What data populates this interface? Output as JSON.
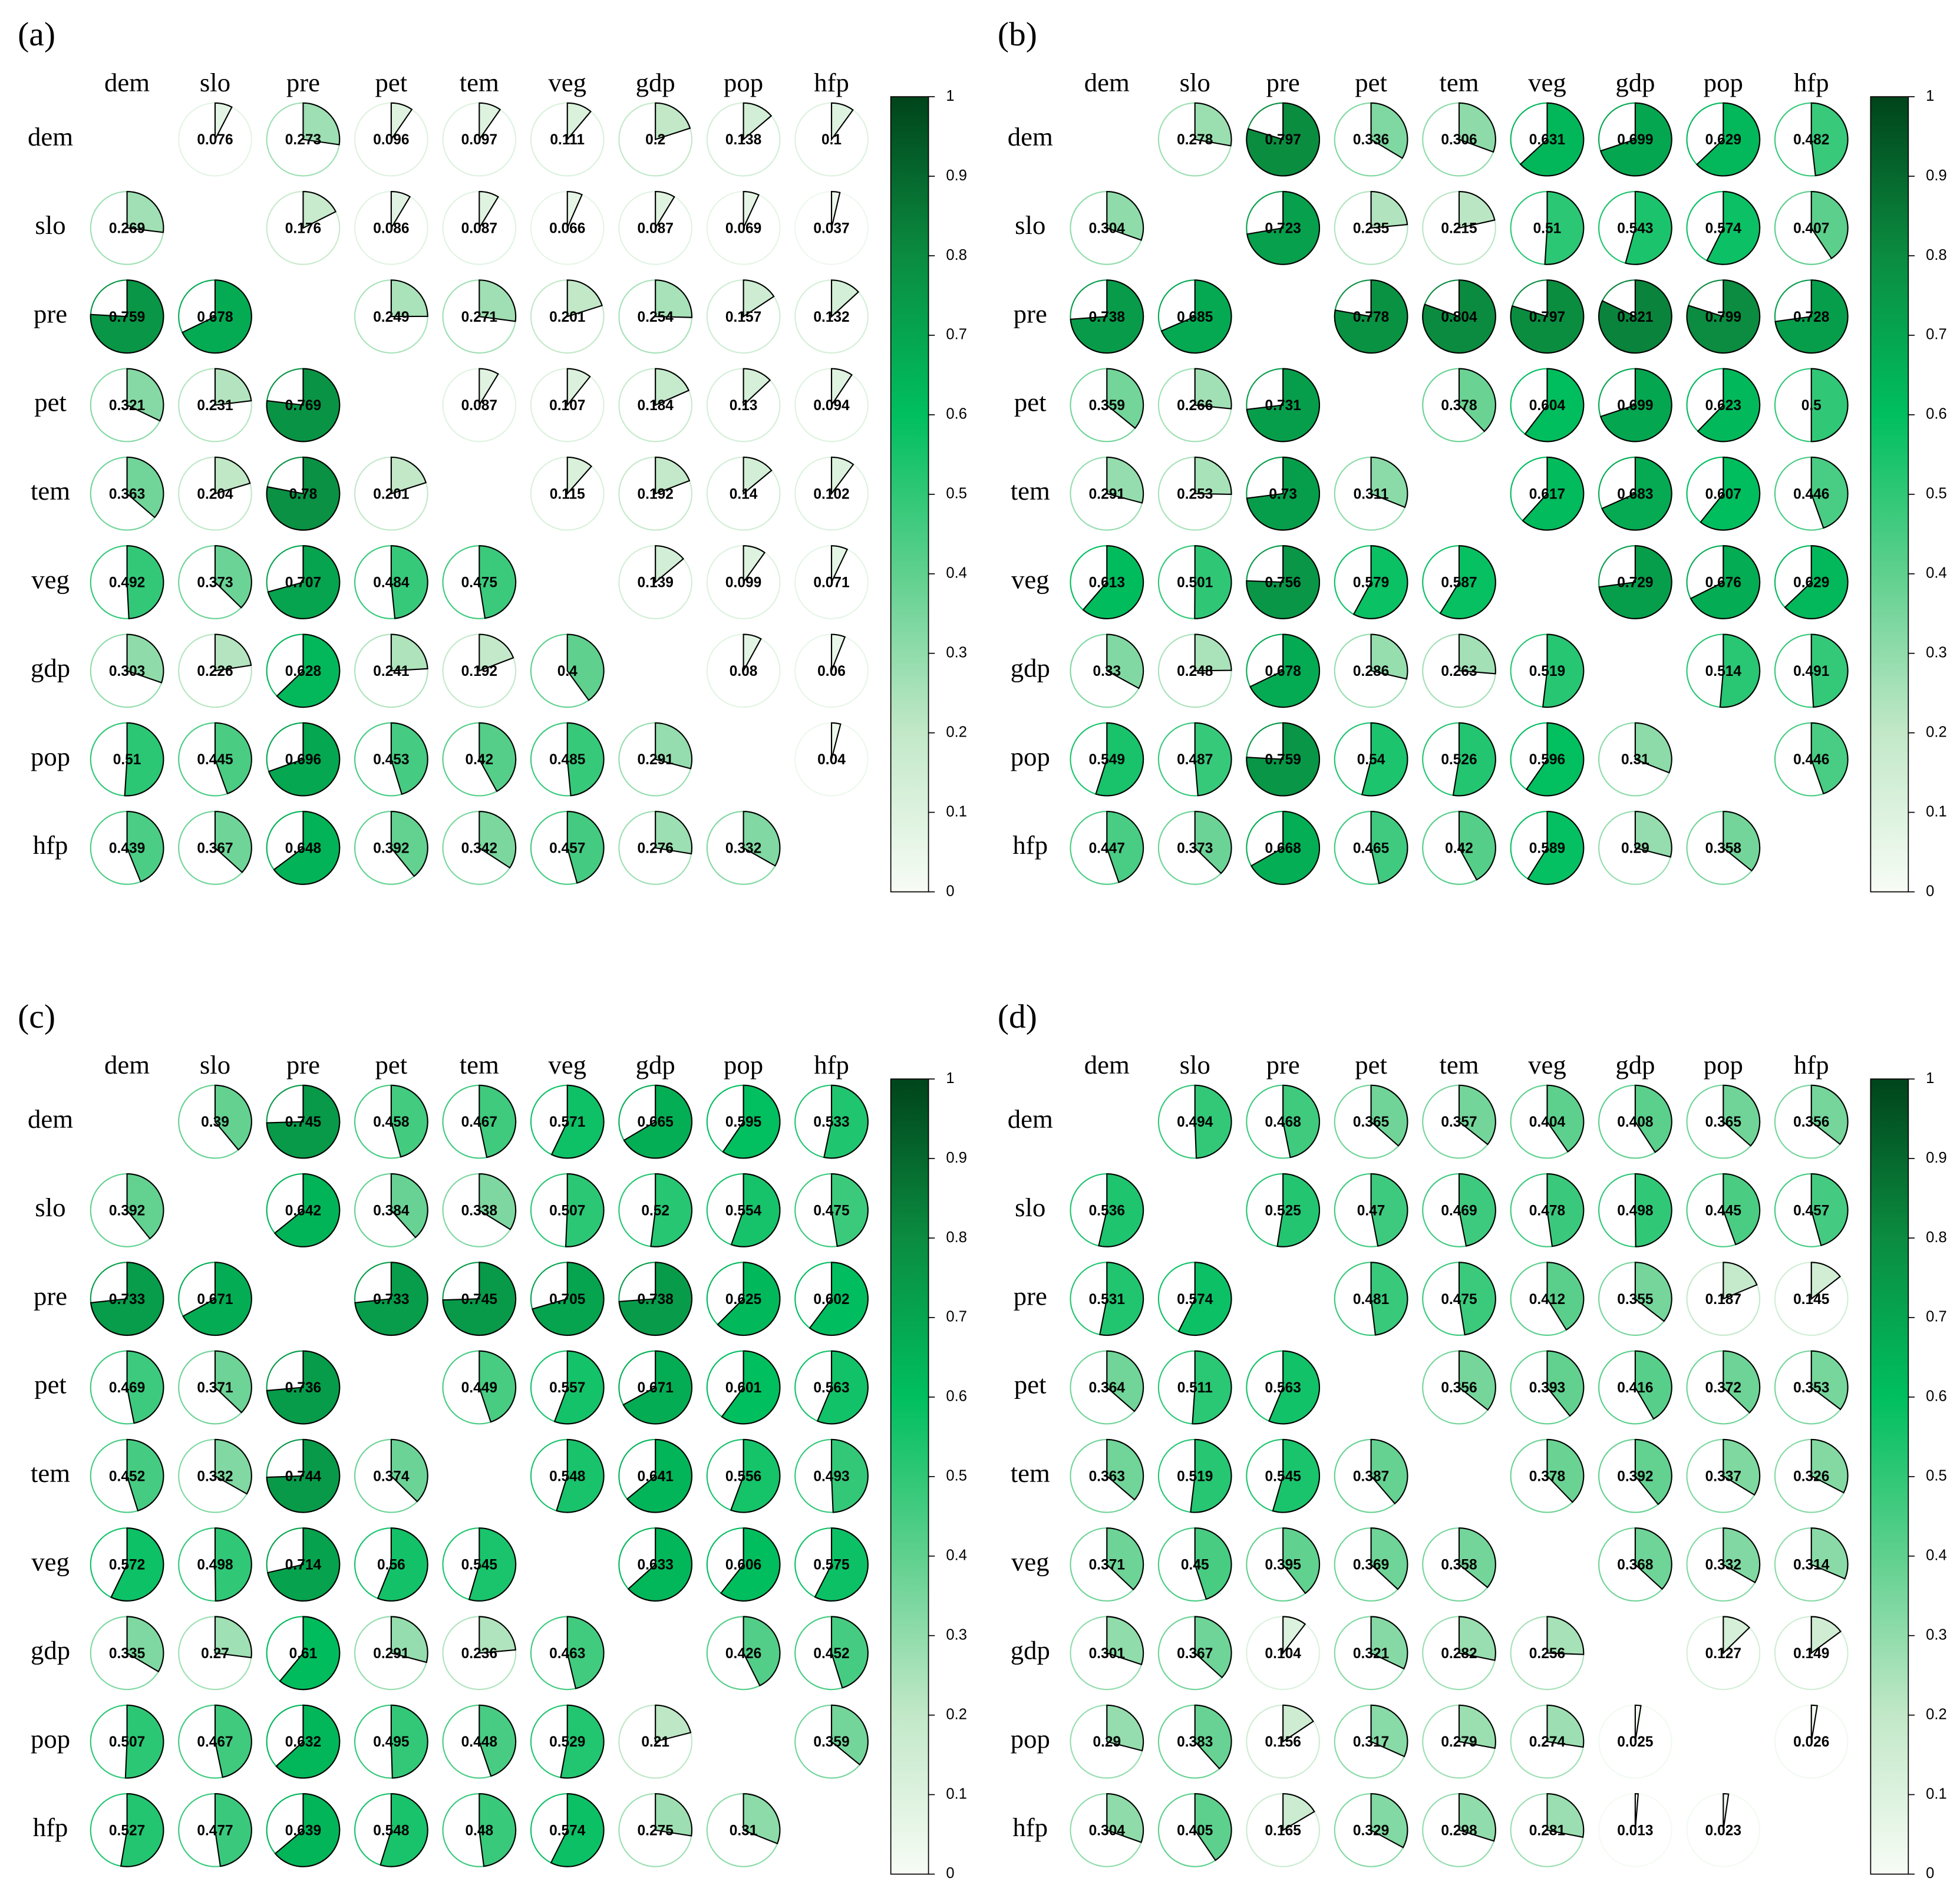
{
  "chart_data": [
    {
      "type": "pie_matrix",
      "title": "(a)",
      "categories": [
        "dem",
        "slo",
        "pre",
        "pet",
        "tem",
        "veg",
        "gdp",
        "pop",
        "hfp"
      ],
      "values": [
        [
          null,
          0.076,
          0.273,
          0.096,
          0.097,
          0.111,
          0.2,
          0.138,
          0.1
        ],
        [
          0.269,
          null,
          0.176,
          0.086,
          0.087,
          0.066,
          0.087,
          0.069,
          0.037
        ],
        [
          0.759,
          0.678,
          null,
          0.249,
          0.271,
          0.201,
          0.254,
          0.157,
          0.132
        ],
        [
          0.321,
          0.231,
          0.769,
          null,
          0.087,
          0.107,
          0.184,
          0.13,
          0.094
        ],
        [
          0.363,
          0.204,
          0.78,
          0.201,
          null,
          0.115,
          0.192,
          0.14,
          0.102
        ],
        [
          0.492,
          0.373,
          0.707,
          0.484,
          0.475,
          null,
          0.139,
          0.099,
          0.071
        ],
        [
          0.303,
          0.226,
          0.628,
          0.241,
          0.192,
          0.4,
          null,
          0.08,
          0.06
        ],
        [
          0.51,
          0.445,
          0.696,
          0.453,
          0.42,
          0.485,
          0.291,
          null,
          0.04
        ],
        [
          0.439,
          0.367,
          0.648,
          0.392,
          0.342,
          0.457,
          0.276,
          0.332,
          null
        ]
      ],
      "clim": [
        0,
        1
      ],
      "cticks": [
        0,
        0.1,
        0.2,
        0.3,
        0.4,
        0.5,
        0.6,
        0.7,
        0.8,
        0.9,
        1
      ],
      "colorscale": [
        "#f7fcf5",
        "#c2e8c8",
        "#5fd08e",
        "#00bf5f",
        "#0b8c40",
        "#00441b"
      ]
    },
    {
      "type": "pie_matrix",
      "title": "(b)",
      "categories": [
        "dem",
        "slo",
        "pre",
        "pet",
        "tem",
        "veg",
        "gdp",
        "pop",
        "hfp"
      ],
      "values": [
        [
          null,
          0.278,
          0.797,
          0.336,
          0.306,
          0.631,
          0.699,
          0.629,
          0.482
        ],
        [
          0.304,
          null,
          0.723,
          0.235,
          0.215,
          0.51,
          0.543,
          0.574,
          0.407
        ],
        [
          0.738,
          0.685,
          null,
          0.778,
          0.804,
          0.797,
          0.821,
          0.799,
          0.728
        ],
        [
          0.359,
          0.266,
          0.731,
          null,
          0.378,
          0.604,
          0.699,
          0.623,
          0.5
        ],
        [
          0.291,
          0.253,
          0.73,
          0.311,
          null,
          0.617,
          0.683,
          0.607,
          0.446
        ],
        [
          0.613,
          0.501,
          0.756,
          0.579,
          0.587,
          null,
          0.729,
          0.676,
          0.629
        ],
        [
          0.33,
          0.248,
          0.678,
          0.286,
          0.263,
          0.519,
          null,
          0.514,
          0.491
        ],
        [
          0.549,
          0.487,
          0.759,
          0.54,
          0.526,
          0.596,
          0.31,
          null,
          0.446
        ],
        [
          0.447,
          0.373,
          0.668,
          0.465,
          0.42,
          0.589,
          0.29,
          0.358,
          null
        ]
      ],
      "clim": [
        0,
        1
      ],
      "cticks": [
        0,
        0.1,
        0.2,
        0.3,
        0.4,
        0.5,
        0.6,
        0.7,
        0.8,
        0.9,
        1
      ],
      "colorscale": [
        "#f7fcf5",
        "#c2e8c8",
        "#5fd08e",
        "#00bf5f",
        "#0b8c40",
        "#00441b"
      ]
    },
    {
      "type": "pie_matrix",
      "title": "(c)",
      "categories": [
        "dem",
        "slo",
        "pre",
        "pet",
        "tem",
        "veg",
        "gdp",
        "pop",
        "hfp"
      ],
      "values": [
        [
          null,
          0.39,
          0.745,
          0.458,
          0.467,
          0.571,
          0.665,
          0.595,
          0.533
        ],
        [
          0.392,
          null,
          0.642,
          0.384,
          0.338,
          0.507,
          0.52,
          0.554,
          0.475
        ],
        [
          0.733,
          0.671,
          null,
          0.733,
          0.745,
          0.705,
          0.738,
          0.625,
          0.602
        ],
        [
          0.469,
          0.371,
          0.736,
          null,
          0.449,
          0.557,
          0.671,
          0.601,
          0.563
        ],
        [
          0.452,
          0.332,
          0.744,
          0.374,
          null,
          0.548,
          0.641,
          0.556,
          0.493
        ],
        [
          0.572,
          0.498,
          0.714,
          0.56,
          0.545,
          null,
          0.633,
          0.606,
          0.575
        ],
        [
          0.335,
          0.27,
          0.61,
          0.291,
          0.236,
          0.463,
          null,
          0.426,
          0.452
        ],
        [
          0.507,
          0.467,
          0.632,
          0.495,
          0.448,
          0.529,
          0.21,
          null,
          0.359
        ],
        [
          0.527,
          0.477,
          0.639,
          0.548,
          0.48,
          0.574,
          0.275,
          0.31,
          null
        ]
      ],
      "clim": [
        0,
        1
      ],
      "cticks": [
        0,
        0.1,
        0.2,
        0.3,
        0.4,
        0.5,
        0.6,
        0.7,
        0.8,
        0.9,
        1
      ],
      "colorscale": [
        "#f7fcf5",
        "#c2e8c8",
        "#5fd08e",
        "#00bf5f",
        "#0b8c40",
        "#00441b"
      ]
    },
    {
      "type": "pie_matrix",
      "title": "(d)",
      "categories": [
        "dem",
        "slo",
        "pre",
        "pet",
        "tem",
        "veg",
        "gdp",
        "pop",
        "hfp"
      ],
      "values": [
        [
          null,
          0.494,
          0.468,
          0.365,
          0.357,
          0.404,
          0.408,
          0.365,
          0.356
        ],
        [
          0.536,
          null,
          0.525,
          0.47,
          0.469,
          0.478,
          0.498,
          0.445,
          0.457
        ],
        [
          0.531,
          0.574,
          null,
          0.481,
          0.475,
          0.412,
          0.355,
          0.187,
          0.145
        ],
        [
          0.364,
          0.511,
          0.563,
          null,
          0.356,
          0.393,
          0.416,
          0.372,
          0.353
        ],
        [
          0.363,
          0.519,
          0.545,
          0.387,
          null,
          0.378,
          0.392,
          0.337,
          0.326
        ],
        [
          0.371,
          0.45,
          0.395,
          0.369,
          0.358,
          null,
          0.368,
          0.332,
          0.314
        ],
        [
          0.301,
          0.367,
          0.104,
          0.321,
          0.282,
          0.256,
          null,
          0.127,
          0.149
        ],
        [
          0.29,
          0.383,
          0.156,
          0.317,
          0.279,
          0.274,
          0.025,
          null,
          0.026
        ],
        [
          0.304,
          0.405,
          0.165,
          0.329,
          0.298,
          0.281,
          0.013,
          0.023,
          null
        ]
      ],
      "clim": [
        0,
        1
      ],
      "cticks": [
        0,
        0.1,
        0.2,
        0.3,
        0.4,
        0.5,
        0.6,
        0.7,
        0.8,
        0.9,
        1
      ],
      "colorscale": [
        "#f7fcf5",
        "#c2e8c8",
        "#5fd08e",
        "#00bf5f",
        "#0b8c40",
        "#00441b"
      ]
    }
  ]
}
